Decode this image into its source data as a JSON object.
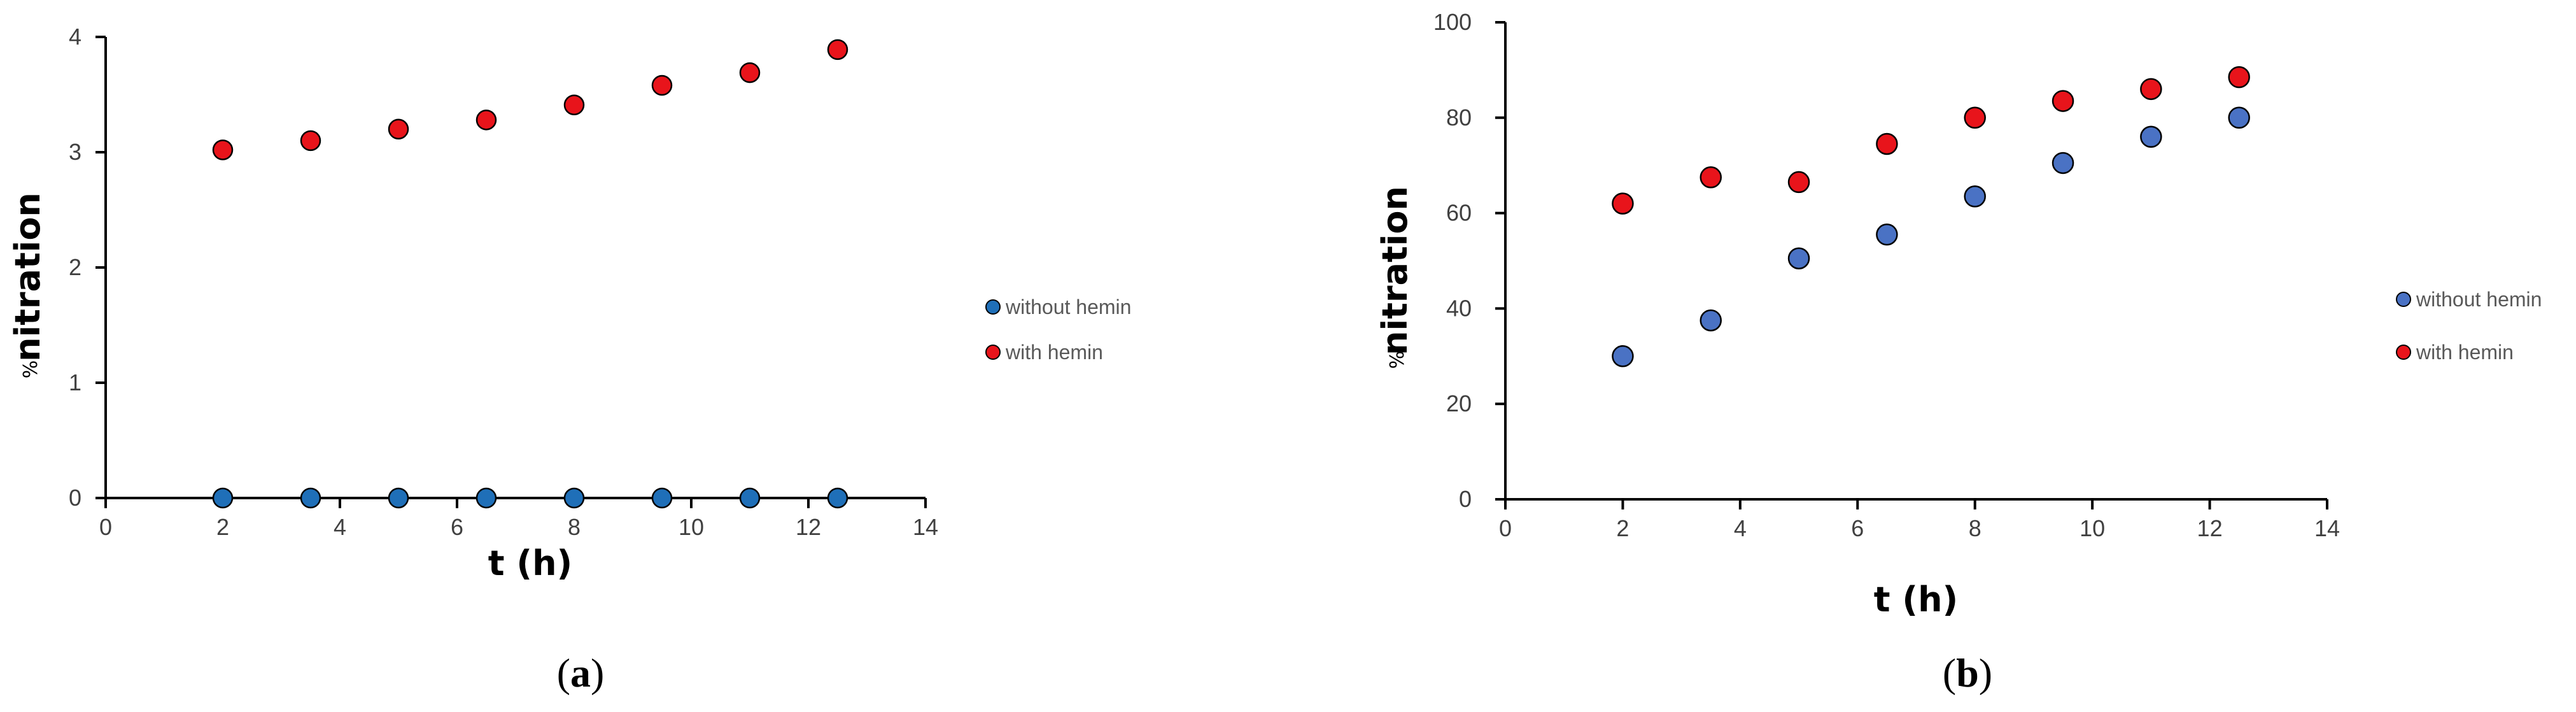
{
  "chart_data": [
    {
      "type": "scatter",
      "panel_label": {
        "open": "(",
        "letter": "a",
        "close": ")"
      },
      "title": "",
      "xlabel": "t (h)",
      "ylabel_prefix": "%",
      "ylabel_main": "nitration",
      "xlim": [
        0,
        14
      ],
      "ylim": [
        0,
        4
      ],
      "xticks": [
        "0",
        "2",
        "4",
        "6",
        "8",
        "10",
        "12",
        "14"
      ],
      "yticks": [
        "0",
        "1",
        "2",
        "3",
        "4"
      ],
      "legend_position": "right",
      "series": [
        {
          "name": "without hemin",
          "color": "#1f6fb8",
          "x": [
            2,
            3.5,
            5,
            6.5,
            8,
            9.5,
            11,
            12.5
          ],
          "y": [
            0,
            0,
            0,
            0,
            0,
            0,
            0,
            0
          ]
        },
        {
          "name": "with hemin",
          "color": "#e8141b",
          "x": [
            2,
            3.5,
            5,
            6.5,
            8,
            9.5,
            11,
            12.5
          ],
          "y": [
            3.02,
            3.1,
            3.2,
            3.28,
            3.41,
            3.58,
            3.69,
            3.89
          ]
        }
      ]
    },
    {
      "type": "scatter",
      "panel_label": {
        "open": "(",
        "letter": "b",
        "close": ")"
      },
      "title": "",
      "xlabel": "t (h)",
      "ylabel_prefix": "%",
      "ylabel_main": "nitration",
      "xlim": [
        0,
        14
      ],
      "ylim": [
        0,
        100
      ],
      "xticks": [
        "0",
        "2",
        "4",
        "6",
        "8",
        "10",
        "12",
        "14"
      ],
      "yticks": [
        "0",
        "20",
        "40",
        "60",
        "80",
        "100"
      ],
      "legend_position": "right",
      "series": [
        {
          "name": "without hemin",
          "color": "#4a72c4",
          "x": [
            2,
            3.5,
            5,
            6.5,
            8,
            9.5,
            11,
            12.5
          ],
          "y": [
            30,
            37.5,
            50.5,
            55.5,
            63.5,
            70.5,
            76,
            80
          ]
        },
        {
          "name": "with hemin",
          "color": "#e8141b",
          "x": [
            2,
            3.5,
            5,
            6.5,
            8,
            9.5,
            11,
            12.5
          ],
          "y": [
            62,
            67.5,
            66.5,
            74.5,
            80,
            83.5,
            86,
            88.5
          ]
        }
      ]
    }
  ]
}
